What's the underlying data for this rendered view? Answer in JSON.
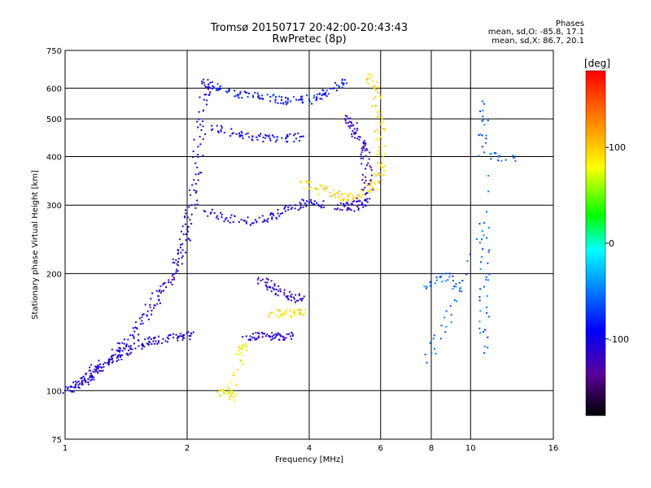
{
  "header": {
    "title": "Tromsø 20150717 20:42:00-20:43:43",
    "subtitle": "RwPretec (8p)",
    "phases_heading": "Phases",
    "phases_o": "mean, sd,O: -85.8, 17.1",
    "phases_x": "mean, sd,X: 86.7, 20.1"
  },
  "chart_data": {
    "type": "scatter",
    "xlabel": "Frequency [MHz]",
    "ylabel": "Stationary phase Virtual Height [km]",
    "xscale": "log",
    "yscale": "log",
    "xlim": [
      1,
      16
    ],
    "ylim": [
      75,
      750
    ],
    "x_ticks": [
      1,
      2,
      4,
      6,
      8,
      10,
      16
    ],
    "x_tick_labels": [
      "1",
      "2",
      "4",
      "6",
      "8",
      "10",
      "16"
    ],
    "y_ticks": [
      75,
      100,
      200,
      300,
      400,
      500,
      600,
      750
    ],
    "y_tick_labels": [
      "75",
      "100",
      "200",
      "300",
      "400",
      "500",
      "600",
      "750"
    ],
    "grid": true,
    "colorbar": {
      "label": "[deg]",
      "range": [
        -180,
        180
      ],
      "ticks": [
        100,
        0,
        -100
      ],
      "tick_labels": [
        "100",
        "0",
        "-100"
      ],
      "colors": [
        "#000000",
        "#5a009a",
        "#0000ff",
        "#0090ff",
        "#00ffff",
        "#00ff00",
        "#ffff00",
        "#ff8000",
        "#ff0000"
      ]
    },
    "series": [
      {
        "trace": "lower_E_trace",
        "phase_deg": -105,
        "points": [
          [
            1.0,
            100
          ],
          [
            1.05,
            102
          ],
          [
            1.1,
            105
          ],
          [
            1.15,
            108
          ],
          [
            1.2,
            112
          ],
          [
            1.28,
            118
          ],
          [
            1.35,
            123
          ],
          [
            1.45,
            128
          ],
          [
            1.55,
            132
          ],
          [
            1.65,
            134
          ],
          [
            1.8,
            136
          ],
          [
            1.95,
            138
          ],
          [
            2.05,
            140
          ]
        ]
      },
      {
        "trace": "E_layer_band",
        "phase_deg": -110,
        "points": [
          [
            1.1,
            108
          ],
          [
            1.2,
            115
          ],
          [
            1.3,
            122
          ],
          [
            1.4,
            132
          ],
          [
            1.5,
            145
          ],
          [
            1.6,
            160
          ],
          [
            1.7,
            175
          ],
          [
            1.8,
            190
          ],
          [
            1.9,
            210
          ],
          [
            1.95,
            230
          ],
          [
            2.0,
            260
          ],
          [
            2.05,
            300
          ],
          [
            2.1,
            360
          ],
          [
            2.15,
            450
          ],
          [
            2.2,
            560
          ],
          [
            2.25,
            630
          ]
        ]
      },
      {
        "trace": "O_F_trace_upper",
        "phase_deg": -85,
        "points": [
          [
            2.2,
            620
          ],
          [
            2.4,
            600
          ],
          [
            2.7,
            580
          ],
          [
            3.0,
            570
          ],
          [
            3.3,
            560
          ],
          [
            3.6,
            555
          ],
          [
            4.0,
            560
          ],
          [
            4.3,
            575
          ],
          [
            4.6,
            600
          ],
          [
            4.9,
            630
          ]
        ]
      },
      {
        "trace": "O_F_trace_middle",
        "phase_deg": -95,
        "points": [
          [
            2.3,
            480
          ],
          [
            2.6,
            460
          ],
          [
            2.9,
            450
          ],
          [
            3.2,
            445
          ],
          [
            3.5,
            445
          ],
          [
            3.8,
            450
          ]
        ]
      },
      {
        "trace": "O_F_trace_lower",
        "phase_deg": -100,
        "points": [
          [
            2.2,
            290
          ],
          [
            2.5,
            278
          ],
          [
            2.8,
            272
          ],
          [
            3.1,
            275
          ],
          [
            3.4,
            285
          ],
          [
            3.7,
            300
          ],
          [
            4.0,
            305
          ],
          [
            4.3,
            300
          ]
        ]
      },
      {
        "trace": "O_cusp",
        "phase_deg": -115,
        "points": [
          [
            4.9,
            500
          ],
          [
            5.1,
            480
          ],
          [
            5.3,
            450
          ],
          [
            5.45,
            420
          ],
          [
            5.55,
            380
          ],
          [
            5.6,
            340
          ],
          [
            5.5,
            310
          ],
          [
            5.3,
            300
          ],
          [
            5.0,
            295
          ],
          [
            4.7,
            300
          ]
        ]
      },
      {
        "trace": "X_trace",
        "phase_deg": 95,
        "points": [
          [
            3.8,
            345
          ],
          [
            4.2,
            330
          ],
          [
            4.6,
            320
          ],
          [
            5.0,
            315
          ],
          [
            5.4,
            320
          ],
          [
            5.8,
            340
          ],
          [
            6.0,
            380
          ],
          [
            6.0,
            450
          ],
          [
            5.9,
            520
          ],
          [
            5.8,
            600
          ],
          [
            5.6,
            650
          ]
        ]
      },
      {
        "trace": "sporadic_E_upper",
        "phase_deg": -112,
        "points": [
          [
            3.0,
            195
          ],
          [
            3.2,
            185
          ],
          [
            3.4,
            180
          ],
          [
            3.6,
            175
          ],
          [
            3.8,
            172
          ]
        ]
      },
      {
        "trace": "sporadic_E_yellow",
        "phase_deg": 90,
        "points": [
          [
            3.2,
            158
          ],
          [
            3.45,
            158
          ],
          [
            3.7,
            158
          ],
          [
            3.9,
            158
          ]
        ]
      },
      {
        "trace": "echo_band_140",
        "phase_deg": -108,
        "points": [
          [
            2.8,
            138
          ],
          [
            3.0,
            138
          ],
          [
            3.2,
            138
          ],
          [
            3.4,
            138
          ],
          [
            3.6,
            138
          ]
        ]
      },
      {
        "trace": "low_freq_spur",
        "phase_deg": 80,
        "points": [
          [
            2.45,
            100
          ],
          [
            2.5,
            98
          ],
          [
            2.6,
            96
          ],
          [
            2.7,
            125
          ],
          [
            2.8,
            130
          ]
        ]
      },
      {
        "trace": "scatter_high_freq",
        "phase_deg": -60,
        "points": [
          [
            7.8,
            185
          ],
          [
            8.7,
            200
          ],
          [
            9.5,
            180
          ],
          [
            7.8,
            118
          ],
          [
            10.8,
            270
          ],
          [
            10.8,
            185
          ],
          [
            10.8,
            125
          ],
          [
            10.7,
            555
          ],
          [
            10.8,
            410
          ],
          [
            12.9,
            390
          ]
        ]
      }
    ]
  }
}
